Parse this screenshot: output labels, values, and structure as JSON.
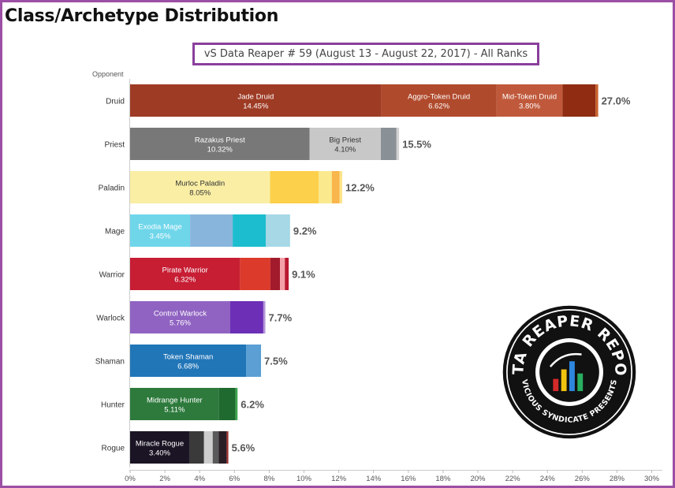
{
  "page": {
    "title": "Class/Archetype Distribution"
  },
  "logo": {
    "top_text": "DATA REAPER REPORT",
    "bottom_text": "VICIOUS SYNDICATE PRESENTS"
  },
  "chart_data": {
    "type": "bar",
    "orientation": "horizontal",
    "stacked": true,
    "title": "vS Data Reaper # 59 (August 13 - August 22, 2017) - All Ranks",
    "ylabel": "Opponent",
    "xlim": [
      0,
      30
    ],
    "x_ticks": [
      "0%",
      "2%",
      "4%",
      "6%",
      "8%",
      "10%",
      "12%",
      "14%",
      "16%",
      "18%",
      "20%",
      "22%",
      "24%",
      "26%",
      "28%",
      "30%"
    ],
    "grid": false,
    "categories": [
      {
        "name": "Druid",
        "total_label": "27.0%",
        "segments": [
          {
            "label": "Jade Druid",
            "value_label": "14.45%",
            "value": 14.45,
            "color": "#9e3b24"
          },
          {
            "label": "Aggro-Token Druid",
            "value_label": "6.62%",
            "value": 6.62,
            "color": "#b04a2c"
          },
          {
            "label": "Mid-Token Druid",
            "value_label": "3.80%",
            "value": 3.8,
            "color": "#c0593b"
          },
          {
            "label": "",
            "value_label": "",
            "value": 1.9,
            "color": "#8f2c12"
          },
          {
            "label": "",
            "value_label": "",
            "value": 0.15,
            "color": "#c8622c"
          }
        ]
      },
      {
        "name": "Priest",
        "total_label": "15.5%",
        "segments": [
          {
            "label": "Razakus Priest",
            "value_label": "10.32%",
            "value": 10.32,
            "color": "#787878"
          },
          {
            "label": "Big Priest",
            "value_label": "4.10%",
            "value": 4.1,
            "color": "#c8c8c8"
          },
          {
            "label": "",
            "value_label": "",
            "value": 0.9,
            "color": "#8a9196"
          },
          {
            "label": "",
            "value_label": "",
            "value": 0.15,
            "color": "#d2d2d2"
          }
        ]
      },
      {
        "name": "Paladin",
        "total_label": "12.2%",
        "segments": [
          {
            "label": "Murloc Paladin",
            "value_label": "8.05%",
            "value": 8.05,
            "color": "#f9eea4"
          },
          {
            "label": "",
            "value_label": "",
            "value": 2.8,
            "color": "#fdd04b"
          },
          {
            "label": "",
            "value_label": "",
            "value": 0.75,
            "color": "#fbe98e"
          },
          {
            "label": "",
            "value_label": "",
            "value": 0.45,
            "color": "#f9b64c"
          },
          {
            "label": "",
            "value_label": "",
            "value": 0.15,
            "color": "#fce48a"
          }
        ]
      },
      {
        "name": "Mage",
        "total_label": "9.2%",
        "segments": [
          {
            "label": "Exodia Mage",
            "value_label": "3.45%",
            "value": 3.45,
            "color": "#6fd6ea"
          },
          {
            "label": "",
            "value_label": "",
            "value": 2.45,
            "color": "#88b5dc"
          },
          {
            "label": "",
            "value_label": "",
            "value": 1.9,
            "color": "#1cbdce"
          },
          {
            "label": "",
            "value_label": "",
            "value": 1.4,
            "color": "#a6d8e6"
          }
        ]
      },
      {
        "name": "Warrior",
        "total_label": "9.1%",
        "segments": [
          {
            "label": "Pirate Warrior",
            "value_label": "6.32%",
            "value": 6.32,
            "color": "#c71e34"
          },
          {
            "label": "",
            "value_label": "",
            "value": 1.75,
            "color": "#dc3a2b"
          },
          {
            "label": "",
            "value_label": "",
            "value": 0.55,
            "color": "#a11b2c"
          },
          {
            "label": "",
            "value_label": "",
            "value": 0.28,
            "color": "#f4a0a8"
          },
          {
            "label": "",
            "value_label": "",
            "value": 0.22,
            "color": "#b8182e"
          }
        ]
      },
      {
        "name": "Warlock",
        "total_label": "7.7%",
        "segments": [
          {
            "label": "Control Warlock",
            "value_label": "5.76%",
            "value": 5.76,
            "color": "#9063c2"
          },
          {
            "label": "",
            "value_label": "",
            "value": 1.9,
            "color": "#6c2fb6"
          },
          {
            "label": "",
            "value_label": "",
            "value": 0.12,
            "color": "#b495d8"
          }
        ]
      },
      {
        "name": "Shaman",
        "total_label": "7.5%",
        "segments": [
          {
            "label": "Token Shaman",
            "value_label": "6.68%",
            "value": 6.68,
            "color": "#2176b8"
          },
          {
            "label": "",
            "value_label": "",
            "value": 0.85,
            "color": "#5b9fd4"
          }
        ]
      },
      {
        "name": "Hunter",
        "total_label": "6.2%",
        "segments": [
          {
            "label": "Midrange Hunter",
            "value_label": "5.11%",
            "value": 5.11,
            "color": "#2d7a3c"
          },
          {
            "label": "",
            "value_label": "",
            "value": 0.95,
            "color": "#1f6a2e"
          },
          {
            "label": "",
            "value_label": "",
            "value": 0.12,
            "color": "#3ea64d"
          }
        ]
      },
      {
        "name": "Rogue",
        "total_label": "5.6%",
        "segments": [
          {
            "label": "Miracle Rogue",
            "value_label": "3.40%",
            "value": 3.4,
            "color": "#1b1424"
          },
          {
            "label": "",
            "value_label": "",
            "value": 0.85,
            "color": "#3a3a3a"
          },
          {
            "label": "",
            "value_label": "",
            "value": 0.5,
            "color": "#cdcdcd"
          },
          {
            "label": "",
            "value_label": "",
            "value": 0.35,
            "color": "#5a5a5a"
          },
          {
            "label": "",
            "value_label": "",
            "value": 0.45,
            "color": "#2a1e26"
          },
          {
            "label": "",
            "value_label": "",
            "value": 0.1,
            "color": "#9a3030"
          }
        ]
      }
    ]
  }
}
